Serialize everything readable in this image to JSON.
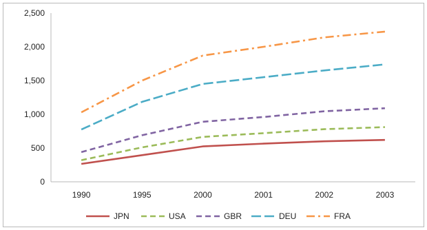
{
  "chart_data": {
    "type": "line",
    "title": "",
    "xlabel": "",
    "ylabel": "",
    "categories": [
      "1990",
      "1995",
      "2000",
      "2001",
      "2002",
      "2003"
    ],
    "yticks": [
      "0",
      "500",
      "1,000",
      "1,500",
      "2,000",
      "2,500"
    ],
    "ylim": [
      0,
      2500
    ],
    "grid": false,
    "legend_position": "bottom",
    "series": [
      {
        "name": "JPN",
        "color": "#c0504d",
        "dash": "solid",
        "values": [
          265,
          395,
          525,
          565,
          600,
          620
        ]
      },
      {
        "name": "USA",
        "color": "#9bbb59",
        "dash": "dash",
        "values": [
          320,
          510,
          665,
          720,
          780,
          810
        ]
      },
      {
        "name": "GBR",
        "color": "#8064a2",
        "dash": "dash",
        "values": [
          440,
          690,
          890,
          960,
          1045,
          1090
        ]
      },
      {
        "name": "DEU",
        "color": "#4bacc6",
        "dash": "longdash",
        "values": [
          775,
          1185,
          1450,
          1550,
          1650,
          1740
        ]
      },
      {
        "name": "FRA",
        "color": "#f79646",
        "dash": "dashdot",
        "values": [
          1030,
          1500,
          1870,
          2000,
          2140,
          2225
        ]
      }
    ]
  }
}
